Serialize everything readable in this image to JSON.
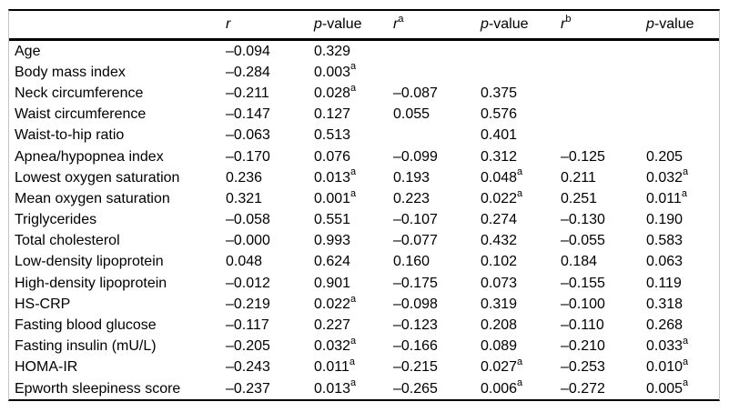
{
  "table": {
    "style": {
      "text_color": "#000000",
      "background": "#ffffff",
      "rule_color": "#000000",
      "side_border_color": "#c4c4c4"
    },
    "header": {
      "row_label": "",
      "cols": [
        {
          "it": "r"
        },
        {
          "it": "p",
          "rest": "-value"
        },
        {
          "it": "r",
          "sup": "a"
        },
        {
          "it": "p",
          "rest": "-value"
        },
        {
          "it": "r",
          "sup": "b"
        },
        {
          "it": "p",
          "rest": "-value"
        }
      ]
    },
    "rows": [
      {
        "label": "Age",
        "cells": [
          {
            "v": "–0.094"
          },
          {
            "v": "0.329"
          },
          null,
          null,
          null,
          null
        ]
      },
      {
        "label": "Body mass index",
        "cells": [
          {
            "v": "–0.284"
          },
          {
            "v": "0.003",
            "sup": "a"
          },
          null,
          null,
          null,
          null
        ]
      },
      {
        "label": "Neck circumference",
        "cells": [
          {
            "v": "–0.211"
          },
          {
            "v": "0.028",
            "sup": "a"
          },
          {
            "v": "–0.087"
          },
          {
            "v": "0.375"
          },
          null,
          null
        ]
      },
      {
        "label": "Waist circumference",
        "cells": [
          {
            "v": "–0.147"
          },
          {
            "v": "0.127"
          },
          {
            "v": "0.055"
          },
          {
            "v": "0.576"
          },
          null,
          null
        ]
      },
      {
        "label": "Waist-to-hip ratio",
        "cells": [
          {
            "v": "–0.063"
          },
          {
            "v": "0.513"
          },
          null,
          {
            "v": "0.401"
          },
          null,
          null
        ]
      },
      {
        "label": "Apnea/hypopnea index",
        "cells": [
          {
            "v": "–0.170"
          },
          {
            "v": "0.076"
          },
          {
            "v": "–0.099"
          },
          {
            "v": "0.312"
          },
          {
            "v": "–0.125"
          },
          {
            "v": "0.205"
          }
        ]
      },
      {
        "label": "Lowest oxygen saturation",
        "cells": [
          {
            "v": "0.236"
          },
          {
            "v": "0.013",
            "sup": "a"
          },
          {
            "v": "0.193"
          },
          {
            "v": "0.048",
            "sup": "a"
          },
          {
            "v": "0.211"
          },
          {
            "v": "0.032",
            "sup": "a"
          }
        ]
      },
      {
        "label": "Mean oxygen saturation",
        "cells": [
          {
            "v": "0.321"
          },
          {
            "v": "0.001",
            "sup": "a"
          },
          {
            "v": "0.223"
          },
          {
            "v": "0.022",
            "sup": "a"
          },
          {
            "v": "0.251"
          },
          {
            "v": "0.011",
            "sup": "a"
          }
        ]
      },
      {
        "label": "Triglycerides",
        "cells": [
          {
            "v": "–0.058"
          },
          {
            "v": "0.551"
          },
          {
            "v": "–0.107"
          },
          {
            "v": "0.274"
          },
          {
            "v": "–0.130"
          },
          {
            "v": "0.190"
          }
        ]
      },
      {
        "label": "Total cholesterol",
        "cells": [
          {
            "v": "–0.000"
          },
          {
            "v": "0.993"
          },
          {
            "v": "–0.077"
          },
          {
            "v": "0.432"
          },
          {
            "v": "–0.055"
          },
          {
            "v": "0.583"
          }
        ]
      },
      {
        "label": "Low-density lipoprotein",
        "cells": [
          {
            "v": "0.048"
          },
          {
            "v": "0.624"
          },
          {
            "v": "0.160"
          },
          {
            "v": "0.102"
          },
          {
            "v": "0.184"
          },
          {
            "v": "0.063"
          }
        ]
      },
      {
        "label": "High-density lipoprotein",
        "cells": [
          {
            "v": "–0.012"
          },
          {
            "v": "0.901"
          },
          {
            "v": "–0.175"
          },
          {
            "v": "0.073"
          },
          {
            "v": "–0.155"
          },
          {
            "v": "0.119"
          }
        ]
      },
      {
        "label": "HS-CRP",
        "cells": [
          {
            "v": "–0.219"
          },
          {
            "v": "0.022",
            "sup": "a"
          },
          {
            "v": "–0.098"
          },
          {
            "v": "0.319"
          },
          {
            "v": "–0.100"
          },
          {
            "v": "0.318"
          }
        ]
      },
      {
        "label": "Fasting blood glucose",
        "cells": [
          {
            "v": "–0.117"
          },
          {
            "v": "0.227"
          },
          {
            "v": "–0.123"
          },
          {
            "v": "0.208"
          },
          {
            "v": "–0.110"
          },
          {
            "v": "0.268"
          }
        ]
      },
      {
        "label": "Fasting insulin (mU/L)",
        "cells": [
          {
            "v": "–0.205"
          },
          {
            "v": "0.032",
            "sup": "a"
          },
          {
            "v": "–0.166"
          },
          {
            "v": "0.089"
          },
          {
            "v": "–0.210"
          },
          {
            "v": "0.033",
            "sup": "a"
          }
        ]
      },
      {
        "label": "HOMA-IR",
        "cells": [
          {
            "v": "–0.243"
          },
          {
            "v": "0.011",
            "sup": "a"
          },
          {
            "v": "–0.215"
          },
          {
            "v": "0.027",
            "sup": "a"
          },
          {
            "v": "–0.253"
          },
          {
            "v": "0.010",
            "sup": "a"
          }
        ]
      },
      {
        "label": "Epworth sleepiness score",
        "cells": [
          {
            "v": "–0.237"
          },
          {
            "v": "0.013",
            "sup": "a"
          },
          {
            "v": "–0.265"
          },
          {
            "v": "0.006",
            "sup": "a"
          },
          {
            "v": "–0.272"
          },
          {
            "v": "0.005",
            "sup": "a"
          }
        ]
      }
    ]
  }
}
